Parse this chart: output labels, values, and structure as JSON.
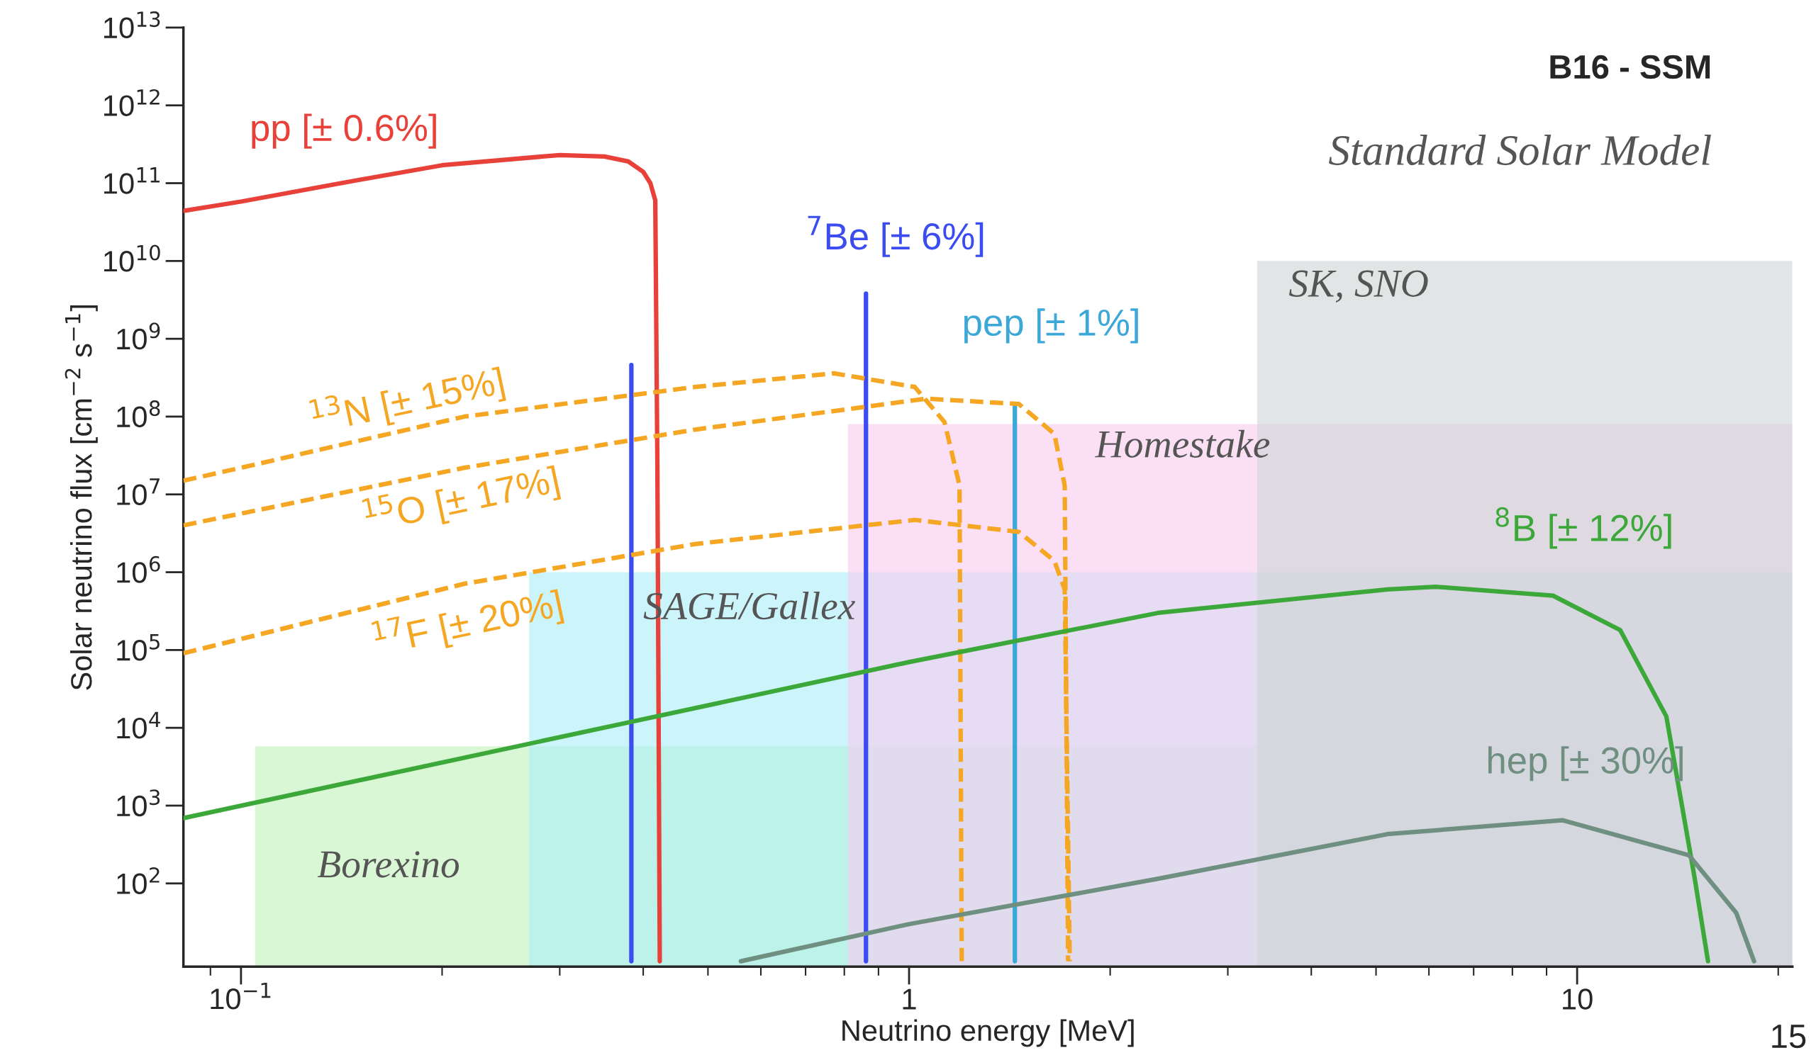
{
  "chart_data": {
    "type": "line",
    "title": "B16 - SSM",
    "subtitle": "Standard Solar Model",
    "xlabel": "Neutrino energy [MeV]",
    "ylabel": "Solar neutrino flux [cm$^{−2}$ s$^{−1}$]",
    "log": "xy",
    "grid": false,
    "legend": false,
    "marker": "none",
    "xlim": [
      0.082,
      21
    ],
    "ylim": [
      8.5,
      10000000000000
    ],
    "xticks": [
      {
        "value": 0.1,
        "label": "10$^{−1}$"
      },
      1,
      10
    ],
    "yticks": [
      {
        "value": 100,
        "label": "10$^{2}$"
      },
      {
        "value": 1000,
        "label": "10$^{3}$"
      },
      {
        "value": 10000,
        "label": "10$^{4}$"
      },
      {
        "value": 100000,
        "label": "10$^{5}$"
      },
      {
        "value": 1000000,
        "label": "10$^{6}$"
      },
      {
        "value": 10000000,
        "label": "10$^{7}$"
      },
      {
        "value": 100000000,
        "label": "10$^{8}$"
      },
      {
        "value": 1000000000,
        "label": "10$^{9}$"
      },
      {
        "value": 10000000000,
        "label": "10$^{10}$"
      },
      {
        "value": 100000000000,
        "label": "10$^{11}$"
      },
      {
        "value": 1000000000000,
        "label": "10$^{12}$"
      },
      {
        "value": 10000000000000,
        "label": "10$^{13}$"
      }
    ],
    "series": [
      {
        "name": "pp [± 0.6%]",
        "color": "#e8413a",
        "line_style": "solid",
        "x": [
          0.082,
          0.1,
          0.15,
          0.2,
          0.3,
          0.35,
          0.38,
          0.4,
          0.41,
          0.417,
          0.42,
          0.4235
        ],
        "values": [
          44000000000,
          58000000000,
          110000000000,
          170000000000,
          230000000000,
          220000000000,
          190000000000,
          140000000000,
          100000000000,
          60000000000,
          25000000,
          10
        ]
      },
      {
        "name": "$^{7}$Be [± 6%]",
        "color": "#3b4cf0",
        "line_style": "solid",
        "x": [
          0.862,
          0.862
        ],
        "values": [
          10,
          3800000000
        ]
      },
      {
        "color": "#3b4cf0",
        "line_style": "solid",
        "x": [
          0.384,
          0.384
        ],
        "values": [
          10,
          460000000
        ]
      },
      {
        "name": "pep [± 1%]",
        "color": "#3ba8d8",
        "line_style": "solid",
        "x": [
          1.44,
          1.44
        ],
        "values": [
          10,
          135000000
        ]
      },
      {
        "name": "$^{13}$N [± 15%]",
        "color": "#f5a623",
        "line_style": "dashed",
        "x": [
          0.082,
          0.1,
          0.216,
          0.478,
          0.772,
          1.02,
          1.13,
          1.19,
          1.199
        ],
        "values": [
          15000000,
          22000000,
          100000000,
          240000000,
          360000000,
          240000000,
          85000000,
          13000000,
          10
        ]
      },
      {
        "name": "$^{15}$O [± 17%]",
        "color": "#f5a623",
        "line_style": "dashed",
        "x": [
          0.082,
          0.216,
          0.478,
          1.06,
          1.46,
          1.65,
          1.71,
          1.73
        ],
        "values": [
          4000000,
          22000000,
          68000000,
          170000000,
          145000000,
          60000000,
          13000000,
          10
        ]
      },
      {
        "name": "$^{17}$F [± 20%]",
        "color": "#f5a623",
        "line_style": "dashed",
        "x": [
          0.082,
          0.216,
          0.478,
          1.02,
          1.46,
          1.65,
          1.71,
          1.74
        ],
        "values": [
          91000,
          710000,
          2300000,
          4700000,
          3300000,
          1400000,
          600000,
          10
        ]
      },
      {
        "name": "$^{8}$B [± 12%]",
        "color": "#3da83a",
        "line_style": "solid",
        "x": [
          0.082,
          1,
          2.36,
          5.2,
          6.14,
          9.2,
          11.6,
          13.6,
          15,
          15.7
        ],
        "values": [
          690,
          70000,
          300000,
          600000,
          650000,
          500000,
          180000,
          14000,
          115,
          10
        ]
      },
      {
        "name": "hep [± 30%]",
        "color": "#6f8f80",
        "line_style": "solid",
        "x": [
          0.56,
          1,
          2.36,
          5.2,
          9.5,
          14.7,
          17.3,
          18.4
        ],
        "values": [
          10,
          30,
          115,
          430,
          650,
          230,
          42,
          10
        ]
      },
      {
        "name": "Borexino",
        "type": "area",
        "color": "#bff2b8",
        "x": [
          0.105,
          21
        ],
        "values": [
          5800,
          5800
        ]
      },
      {
        "name": "SAGE/Gallex",
        "type": "area",
        "color": "#a9eef8",
        "x": [
          0.27,
          21
        ],
        "values": [
          1000000,
          1000000
        ]
      },
      {
        "name": "Homestake",
        "type": "area",
        "color": "#f9ccef",
        "x": [
          0.81,
          21
        ],
        "values": [
          80000000,
          80000000
        ]
      },
      {
        "name": "SK, SNO",
        "type": "area",
        "color": "#cdd4d4",
        "x": [
          3.32,
          21
        ],
        "values": [
          10000000000,
          10000000000
        ]
      }
    ],
    "annotations": [
      "15"
    ]
  }
}
